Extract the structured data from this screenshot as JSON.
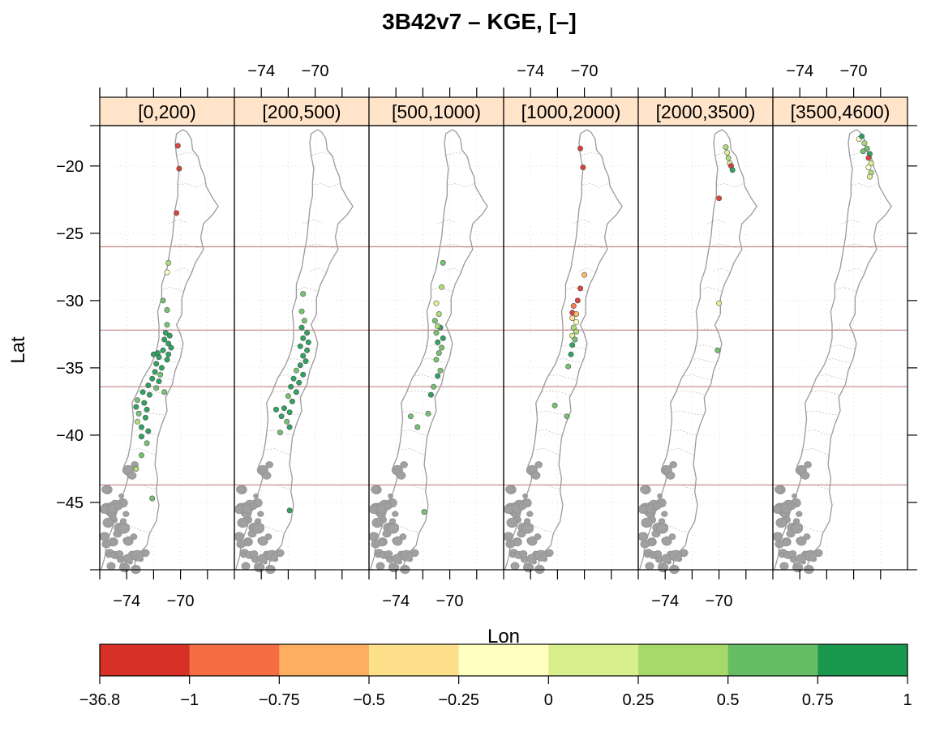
{
  "title": "3B42v7 – KGE, [–]",
  "xlabel": "Lon",
  "ylabel": "Lat",
  "x_ticks": [
    "−74",
    "−70"
  ],
  "y_ticks": [
    "−20",
    "−25",
    "−30",
    "−35",
    "−40",
    "−45"
  ],
  "strip_fill": "#ffe4c9",
  "map_outline_color": "#9a9a9a",
  "ref_line_color": "#c79090",
  "panels": [
    {
      "label": "[0,200)"
    },
    {
      "label": "[200,500)"
    },
    {
      "label": "[500,1000)"
    },
    {
      "label": "[1000,2000)"
    },
    {
      "label": "[2000,3500)"
    },
    {
      "label": "[3500,4600)"
    }
  ],
  "colorkey": {
    "labels": [
      "−36.8",
      "−1",
      "−0.75",
      "−0.5",
      "−0.25",
      "0",
      "0.25",
      "0.5",
      "0.75",
      "1"
    ],
    "colors": [
      "#d73027",
      "#f46d43",
      "#fdae61",
      "#fee08b",
      "#ffffbf",
      "#d9ef8b",
      "#a6d96a",
      "#66bd63",
      "#1a9850"
    ]
  }
}
